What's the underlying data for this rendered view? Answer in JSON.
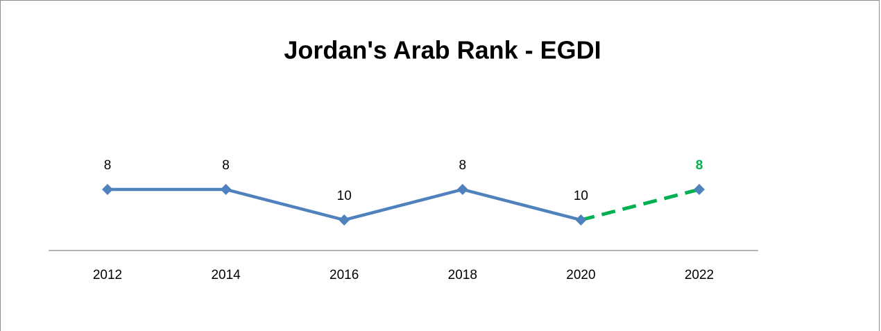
{
  "chart_data": {
    "type": "line",
    "title": "Jordan's Arab Rank - EGDI",
    "categories": [
      "2012",
      "2014",
      "2016",
      "2018",
      "2020",
      "2022"
    ],
    "ylim": [
      12,
      2
    ],
    "series": [
      {
        "color": "#4f81bd",
        "dash": "solid",
        "label_color": "#000000",
        "label_bold": false,
        "values": [
          8,
          8,
          10,
          8,
          10,
          null
        ]
      },
      {
        "color": "#00b050",
        "dash": "dashed",
        "label_color": "#00b050",
        "label_bold": true,
        "values": [
          null,
          null,
          null,
          null,
          10,
          8
        ]
      }
    ]
  }
}
